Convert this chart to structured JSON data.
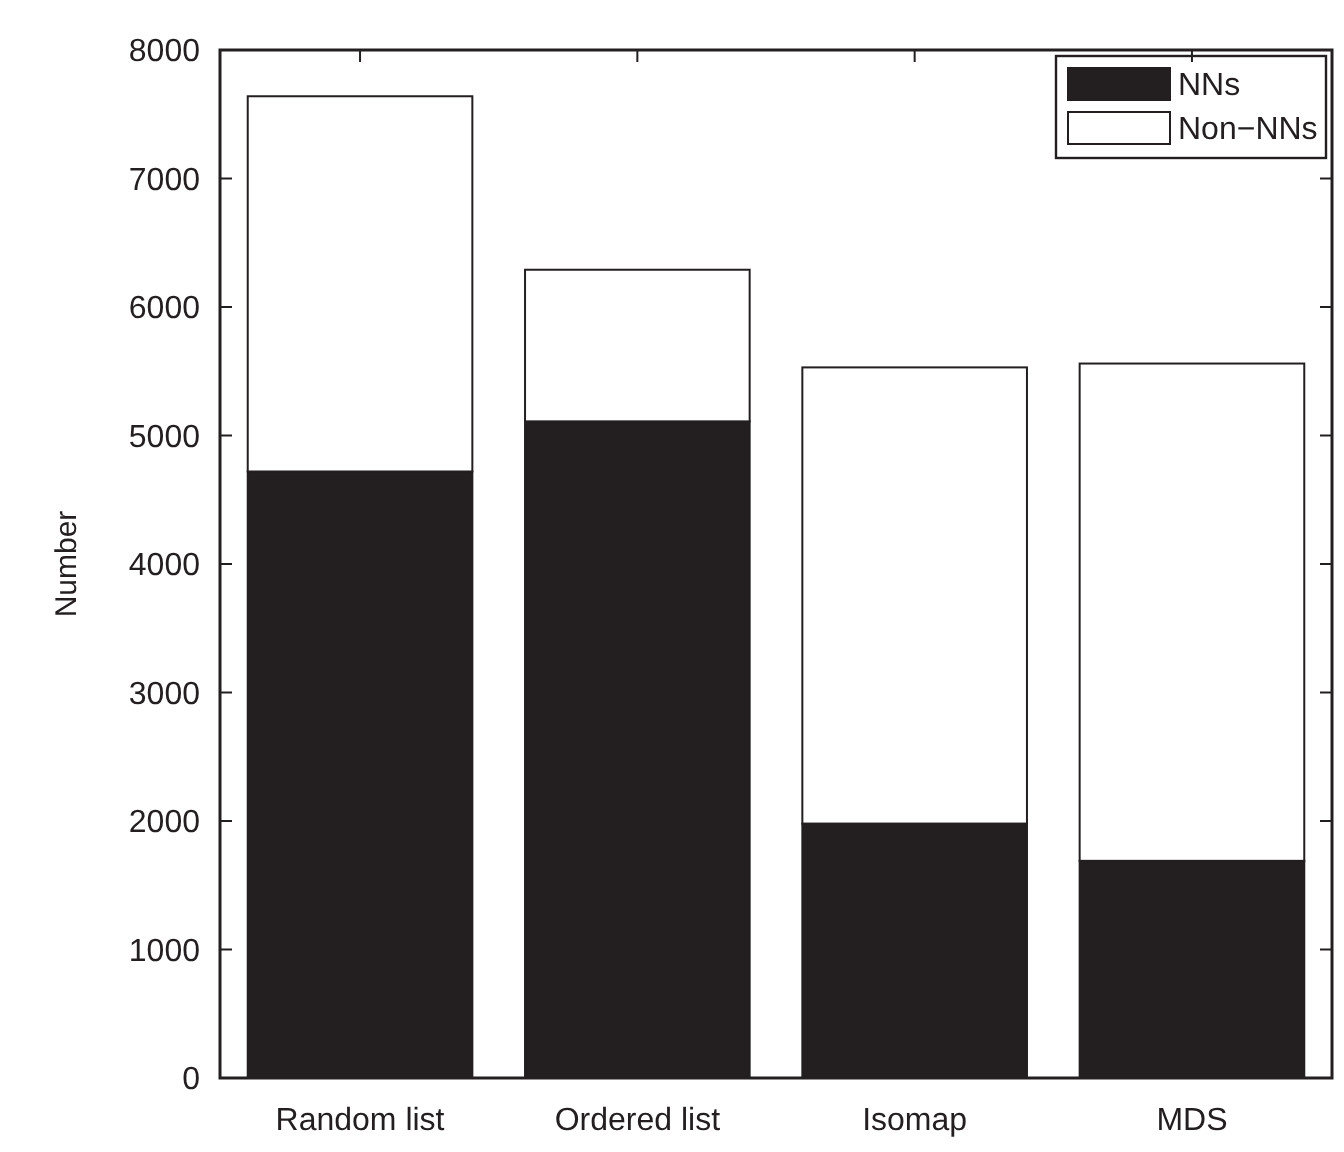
{
  "chart_data": {
    "type": "bar",
    "stacked": true,
    "ylabel": "Number",
    "categories": [
      "Random list",
      "Ordered list",
      "Isomap",
      "MDS"
    ],
    "series": [
      {
        "name": "NNs",
        "color": "#231f20",
        "values": [
          4720,
          5110,
          1980,
          1690
        ]
      },
      {
        "name": "Non−NNs",
        "color": "#ffffff",
        "values": [
          2920,
          1180,
          3550,
          3870
        ]
      }
    ],
    "ylim": [
      0,
      8000
    ],
    "yticks": [
      0,
      1000,
      2000,
      3000,
      4000,
      5000,
      6000,
      7000,
      8000
    ],
    "grid": false,
    "legend": "top right"
  }
}
